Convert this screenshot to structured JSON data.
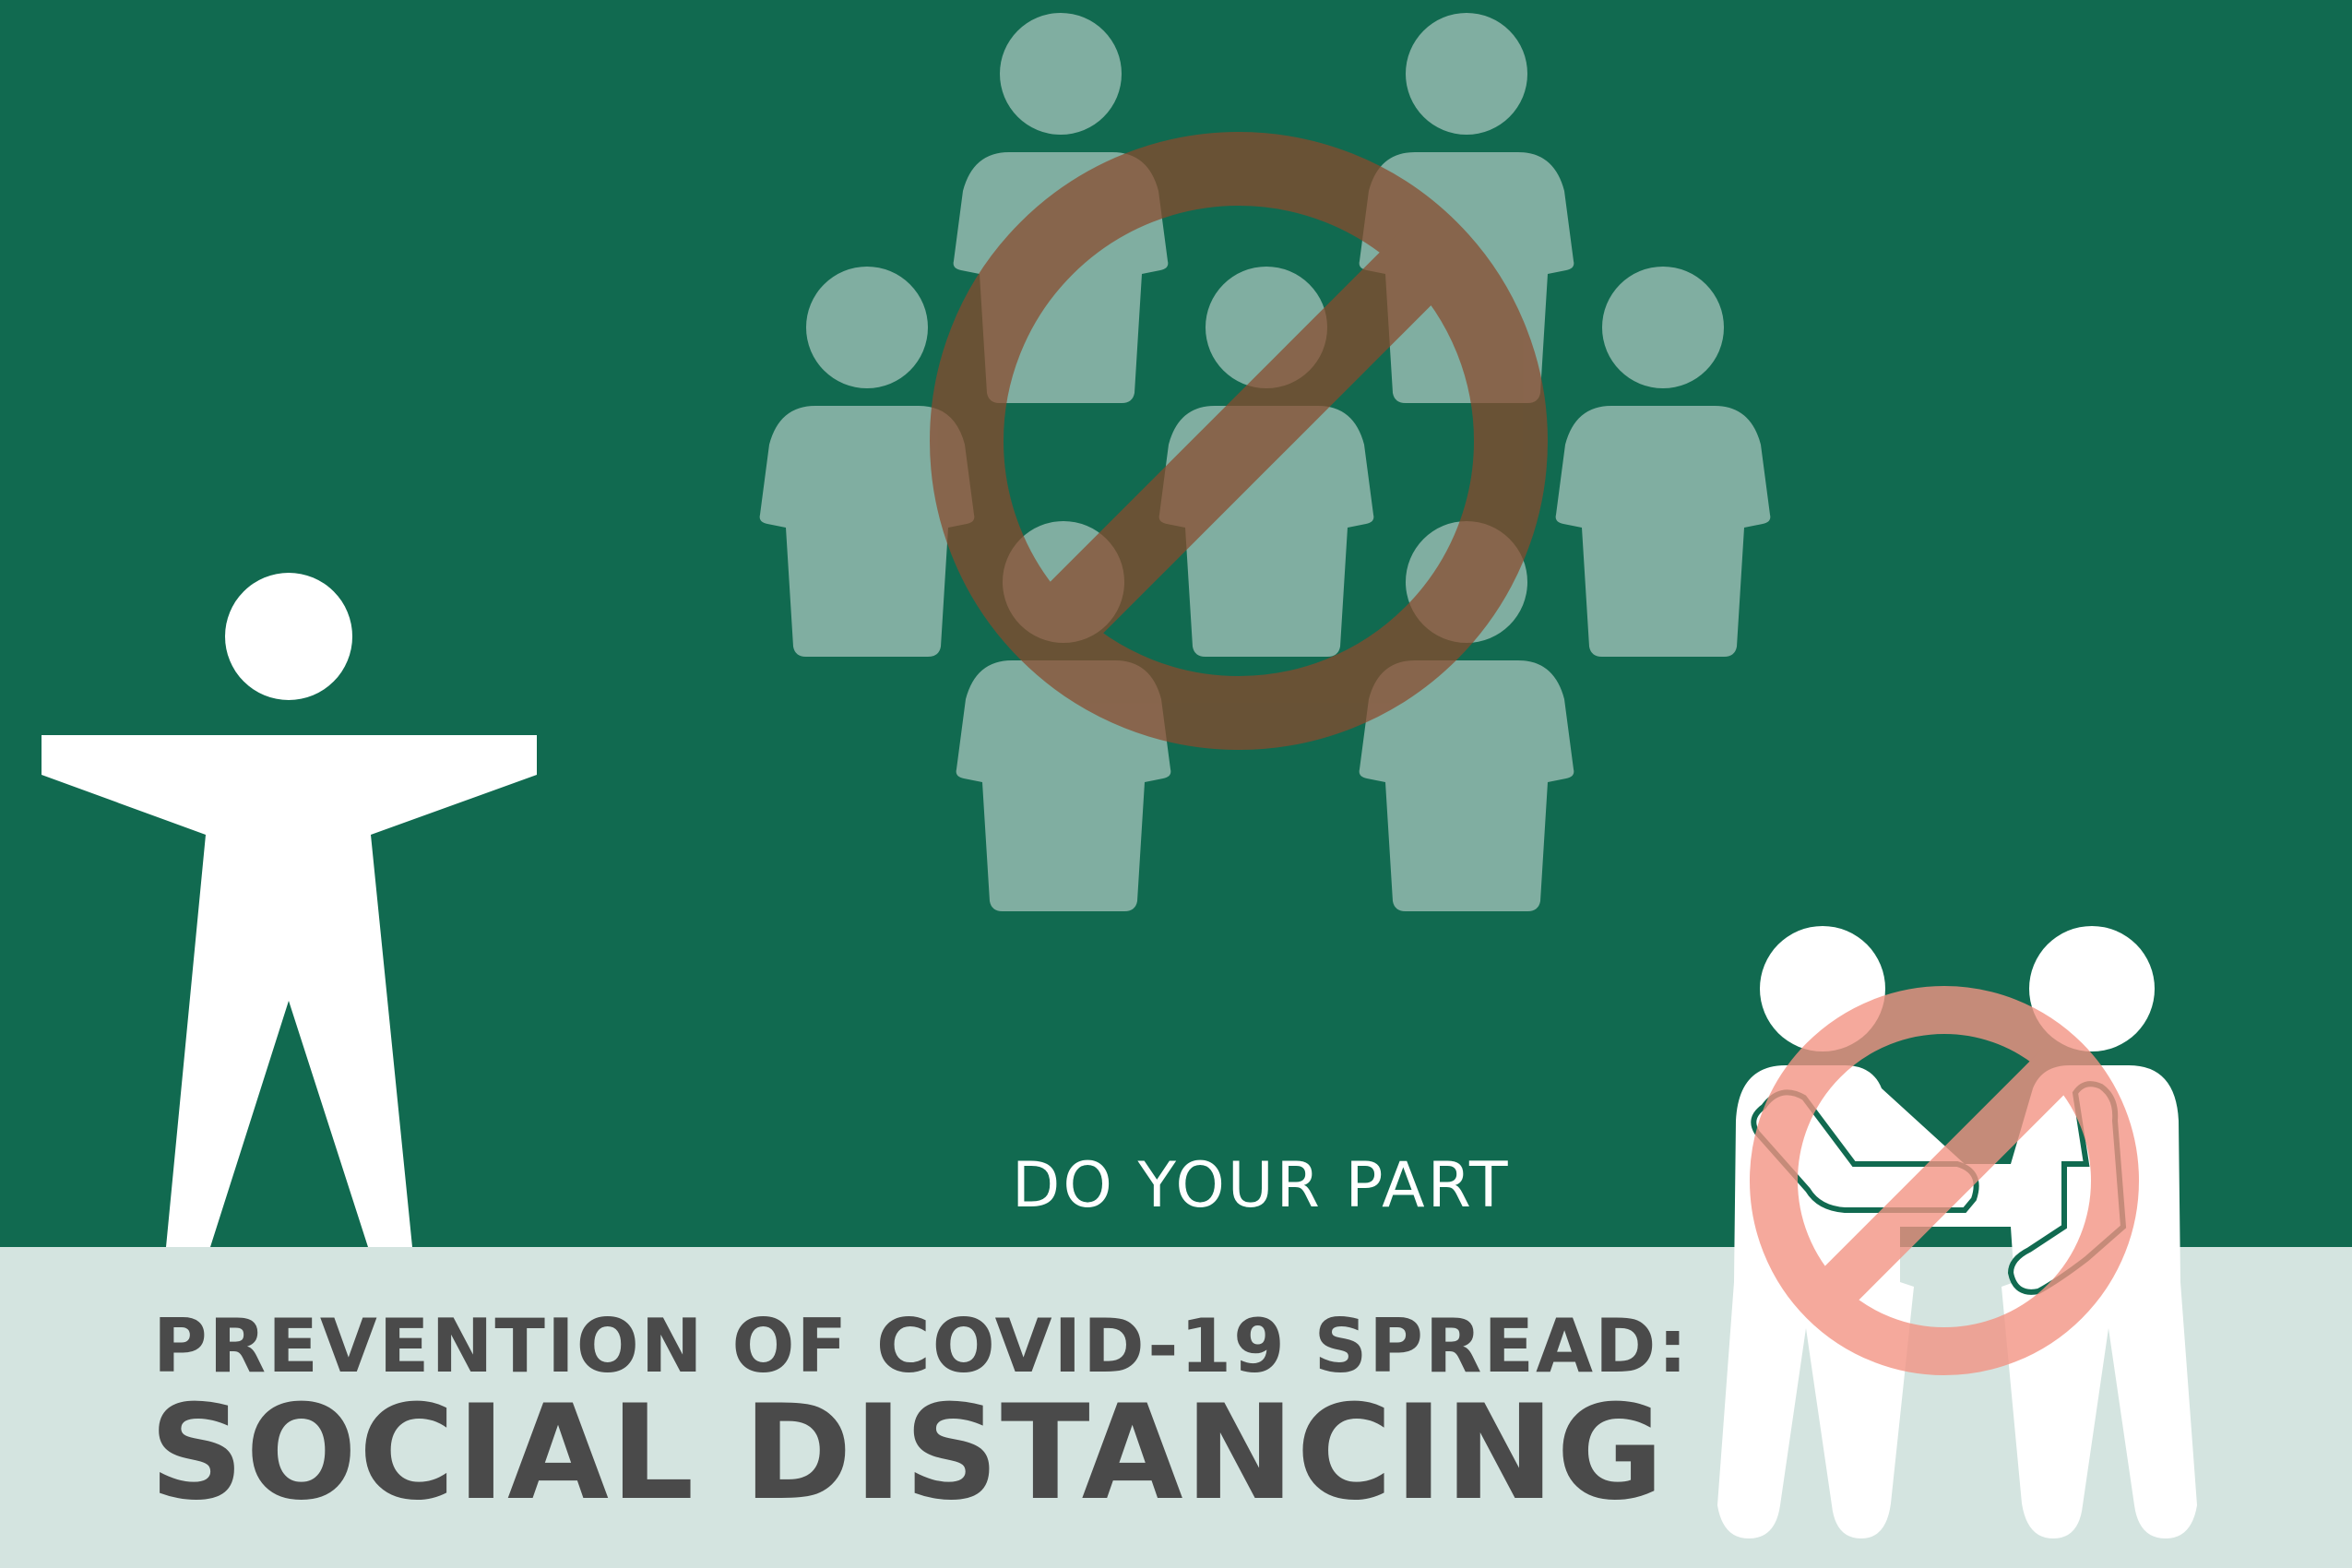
{
  "colors": {
    "background_green": "#116a50",
    "footer_band": "#d4e4e0",
    "crowd_figures": "#80aea1",
    "figure_white": "#ffffff",
    "prohibition_dark": "#8b4a2c",
    "prohibition_light": "#f39484",
    "text_dark": "#4a4a4a"
  },
  "icons": {
    "standing_person": "person-arms-out-icon",
    "crowd": "group-of-people-icon",
    "handshake": "handshake-icon",
    "prohibition": "no-symbol-icon"
  },
  "tagline": "DO YOUR PART",
  "headline": "PREVENTION OF COVID-19 SPREAD:",
  "title": "SOCIAL DISTANCING"
}
